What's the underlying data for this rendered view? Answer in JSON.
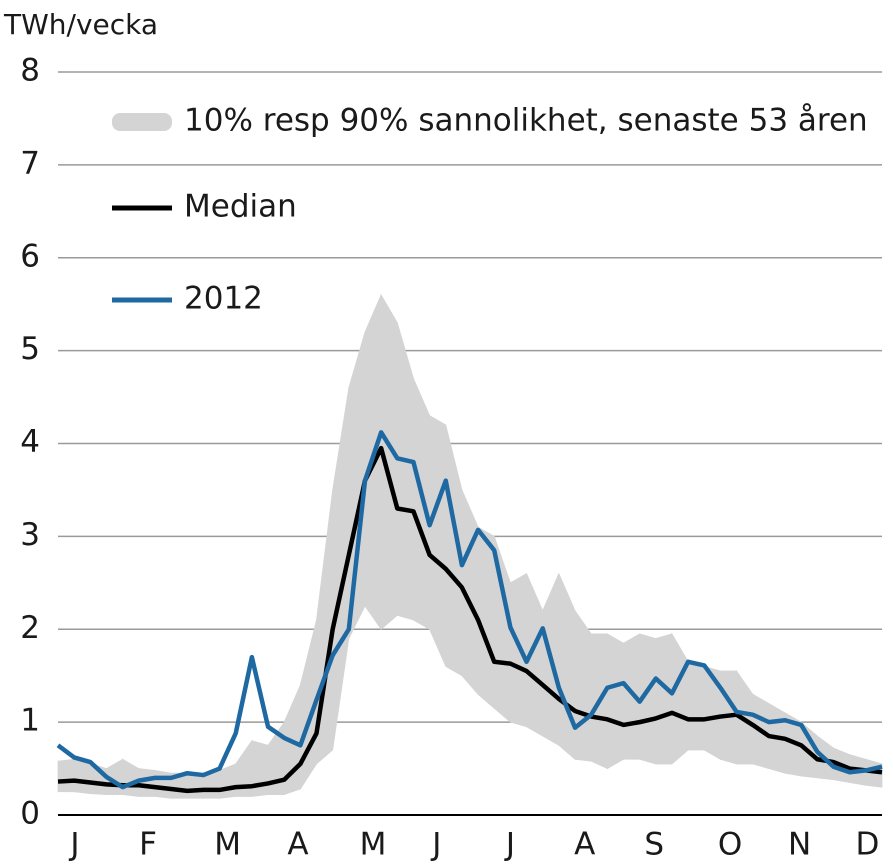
{
  "chart_data": {
    "type": "line",
    "y_label": "TWh/vecka",
    "x": [
      1,
      2,
      3,
      4,
      5,
      6,
      7,
      8,
      9,
      10,
      11,
      12,
      13,
      14,
      15,
      16,
      17,
      18,
      19,
      20,
      21,
      22,
      23,
      24,
      25,
      26,
      27,
      28,
      29,
      30,
      31,
      32,
      33,
      34,
      35,
      36,
      37,
      38,
      39,
      40,
      41,
      42,
      43,
      44,
      45,
      46,
      47,
      48,
      49,
      50,
      51,
      52
    ],
    "xlim": [
      1,
      52
    ],
    "xticks": [
      {
        "value": 2.05,
        "label": "J"
      },
      {
        "value": 6.57,
        "label": "F"
      },
      {
        "value": 11.5,
        "label": "M"
      },
      {
        "value": 15.85,
        "label": "A"
      },
      {
        "value": 20.5,
        "label": "M"
      },
      {
        "value": 24.45,
        "label": "J"
      },
      {
        "value": 29,
        "label": "J"
      },
      {
        "value": 33.6,
        "label": "A"
      },
      {
        "value": 37.9,
        "label": "S"
      },
      {
        "value": 42.6,
        "label": "O"
      },
      {
        "value": 46.9,
        "label": "N"
      },
      {
        "value": 51.1,
        "label": "D"
      }
    ],
    "ylim": [
      0,
      8
    ],
    "yticks": [
      0,
      1,
      2,
      3,
      4,
      5,
      6,
      7,
      8
    ],
    "grid": true,
    "series": [
      {
        "name": "10% resp 90% sannolikhet, senaste 53 åren",
        "type": "band",
        "color": "#d4d4d4",
        "upper": [
          0.58,
          0.6,
          0.55,
          0.5,
          0.6,
          0.5,
          0.48,
          0.45,
          0.45,
          0.45,
          0.48,
          0.55,
          0.8,
          0.75,
          1.0,
          1.4,
          2.1,
          3.5,
          4.6,
          5.2,
          5.6,
          5.3,
          4.7,
          4.3,
          4.2,
          3.5,
          3.1,
          3.0,
          2.5,
          2.6,
          2.2,
          2.6,
          2.2,
          1.95,
          1.95,
          1.85,
          1.95,
          1.9,
          1.95,
          1.65,
          1.6,
          1.55,
          1.55,
          1.3,
          1.2,
          1.1,
          1.0,
          0.85,
          0.72,
          0.65,
          0.6,
          0.55
        ],
        "lower": [
          0.25,
          0.25,
          0.23,
          0.22,
          0.22,
          0.2,
          0.2,
          0.18,
          0.18,
          0.18,
          0.18,
          0.2,
          0.2,
          0.22,
          0.22,
          0.28,
          0.55,
          0.7,
          1.9,
          2.25,
          2.0,
          2.15,
          2.1,
          2.0,
          1.6,
          1.5,
          1.3,
          1.15,
          1.0,
          0.95,
          0.85,
          0.75,
          0.6,
          0.58,
          0.5,
          0.6,
          0.6,
          0.55,
          0.55,
          0.7,
          0.7,
          0.6,
          0.55,
          0.55,
          0.5,
          0.45,
          0.42,
          0.4,
          0.38,
          0.35,
          0.32,
          0.3
        ]
      },
      {
        "name": "Median",
        "color": "#000000",
        "values": [
          0.36,
          0.37,
          0.35,
          0.33,
          0.32,
          0.32,
          0.3,
          0.28,
          0.26,
          0.27,
          0.27,
          0.3,
          0.31,
          0.34,
          0.38,
          0.55,
          0.88,
          2.0,
          2.8,
          3.6,
          3.95,
          3.3,
          3.27,
          2.8,
          2.65,
          2.45,
          2.1,
          1.65,
          1.63,
          1.55,
          1.4,
          1.25,
          1.12,
          1.06,
          1.03,
          0.97,
          1.0,
          1.04,
          1.1,
          1.03,
          1.03,
          1.06,
          1.08,
          0.97,
          0.85,
          0.82,
          0.75,
          0.6,
          0.57,
          0.5,
          0.48,
          0.46
        ]
      },
      {
        "name": "2012",
        "color": "#1f69a3",
        "values": [
          0.75,
          0.62,
          0.57,
          0.41,
          0.3,
          0.37,
          0.4,
          0.4,
          0.45,
          0.43,
          0.5,
          0.88,
          1.7,
          0.95,
          0.83,
          0.75,
          1.24,
          1.72,
          2.0,
          3.6,
          4.12,
          3.84,
          3.8,
          3.12,
          3.6,
          2.69,
          3.07,
          2.85,
          2.02,
          1.65,
          2.01,
          1.37,
          0.94,
          1.08,
          1.37,
          1.42,
          1.22,
          1.47,
          1.31,
          1.65,
          1.61,
          1.37,
          1.11,
          1.08,
          1.0,
          1.02,
          0.97,
          0.68,
          0.52,
          0.46,
          0.48,
          0.52
        ]
      }
    ]
  }
}
